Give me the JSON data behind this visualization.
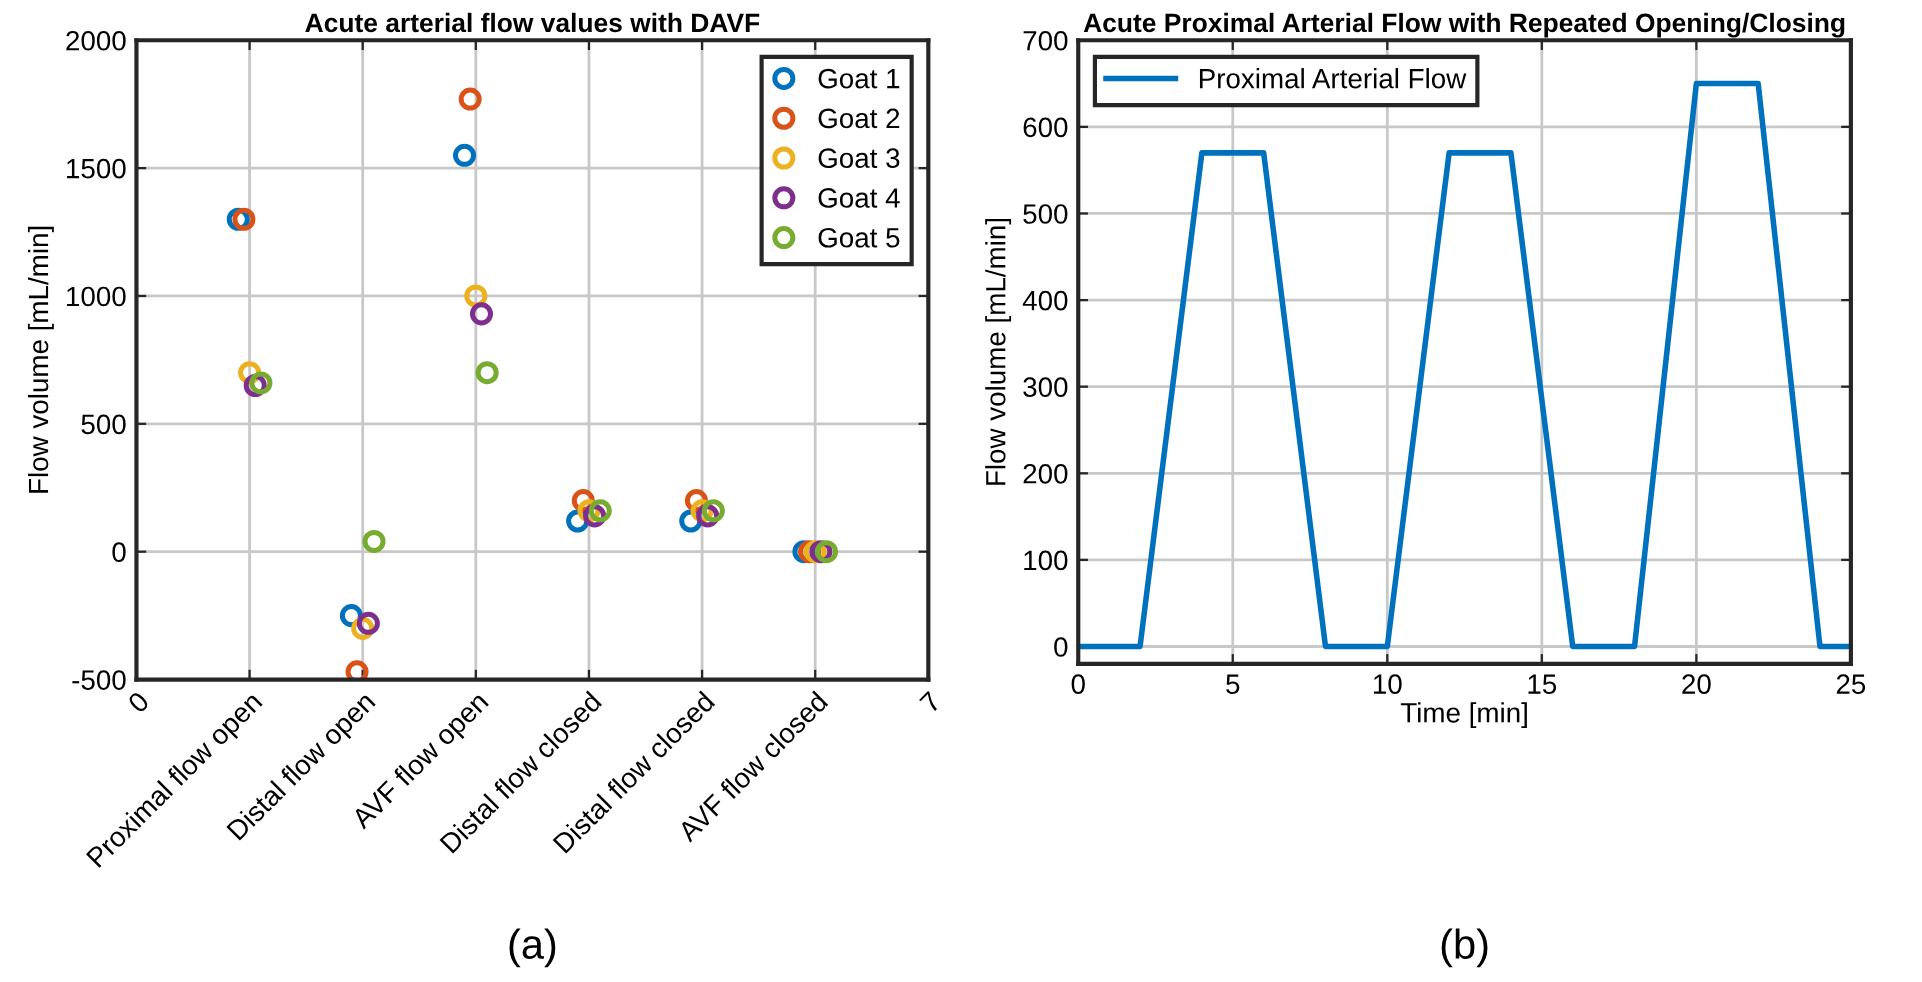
{
  "chart_data": [
    {
      "type": "scatter",
      "title": "Acute arterial flow values with DAVF",
      "ylabel": "Flow volume [mL/min]",
      "categories": [
        "0",
        "Proximal flow open",
        "Distal flow open",
        "AVF flow open",
        "Distal flow closed",
        "Distal flow closed",
        "AVF flow closed",
        "7"
      ],
      "ylim": [
        -500,
        2000
      ],
      "yticks": [
        -500,
        0,
        500,
        1000,
        1500,
        2000
      ],
      "grid": true,
      "legend": "top right",
      "marker": "circle",
      "annotations": [
        "(a)"
      ],
      "series": [
        {
          "name": "Goat 1",
          "color": "#0072bd",
          "values": [
            null,
            1300,
            -250,
            1550,
            120,
            120,
            0,
            null
          ]
        },
        {
          "name": "Goat 2",
          "color": "#d95319",
          "values": [
            null,
            1300,
            -470,
            1770,
            200,
            200,
            0,
            null
          ]
        },
        {
          "name": "Goat 3",
          "color": "#edb120",
          "values": [
            null,
            700,
            -300,
            1000,
            160,
            160,
            0,
            null
          ]
        },
        {
          "name": "Goat 4",
          "color": "#7e2f8e",
          "values": [
            null,
            650,
            -280,
            930,
            140,
            140,
            0,
            null
          ]
        },
        {
          "name": "Goat 5",
          "color": "#77ac30",
          "values": [
            null,
            660,
            40,
            700,
            160,
            160,
            0,
            null
          ]
        }
      ]
    },
    {
      "type": "line",
      "title": "Acute Proximal Arterial Flow with Repeated Opening/Closing",
      "xlabel": "Time [min]",
      "ylabel": "Flow volume [mL/min]",
      "xlim": [
        0,
        25
      ],
      "xticks": [
        0,
        5,
        10,
        15,
        20,
        25
      ],
      "ylim": [
        -20,
        700
      ],
      "yticks": [
        0,
        100,
        200,
        300,
        400,
        500,
        600,
        700
      ],
      "grid": true,
      "legend": "top left",
      "line_style": "solid",
      "annotations": [
        "(b)"
      ],
      "series": [
        {
          "name": "Proximal Arterial Flow",
          "color": "#0072bd",
          "x": [
            0,
            2,
            4,
            6,
            8,
            10,
            12,
            14,
            16,
            18,
            20,
            22,
            24,
            25
          ],
          "values": [
            0,
            0,
            570,
            570,
            0,
            0,
            570,
            570,
            0,
            0,
            650,
            650,
            0,
            0
          ]
        }
      ]
    }
  ]
}
